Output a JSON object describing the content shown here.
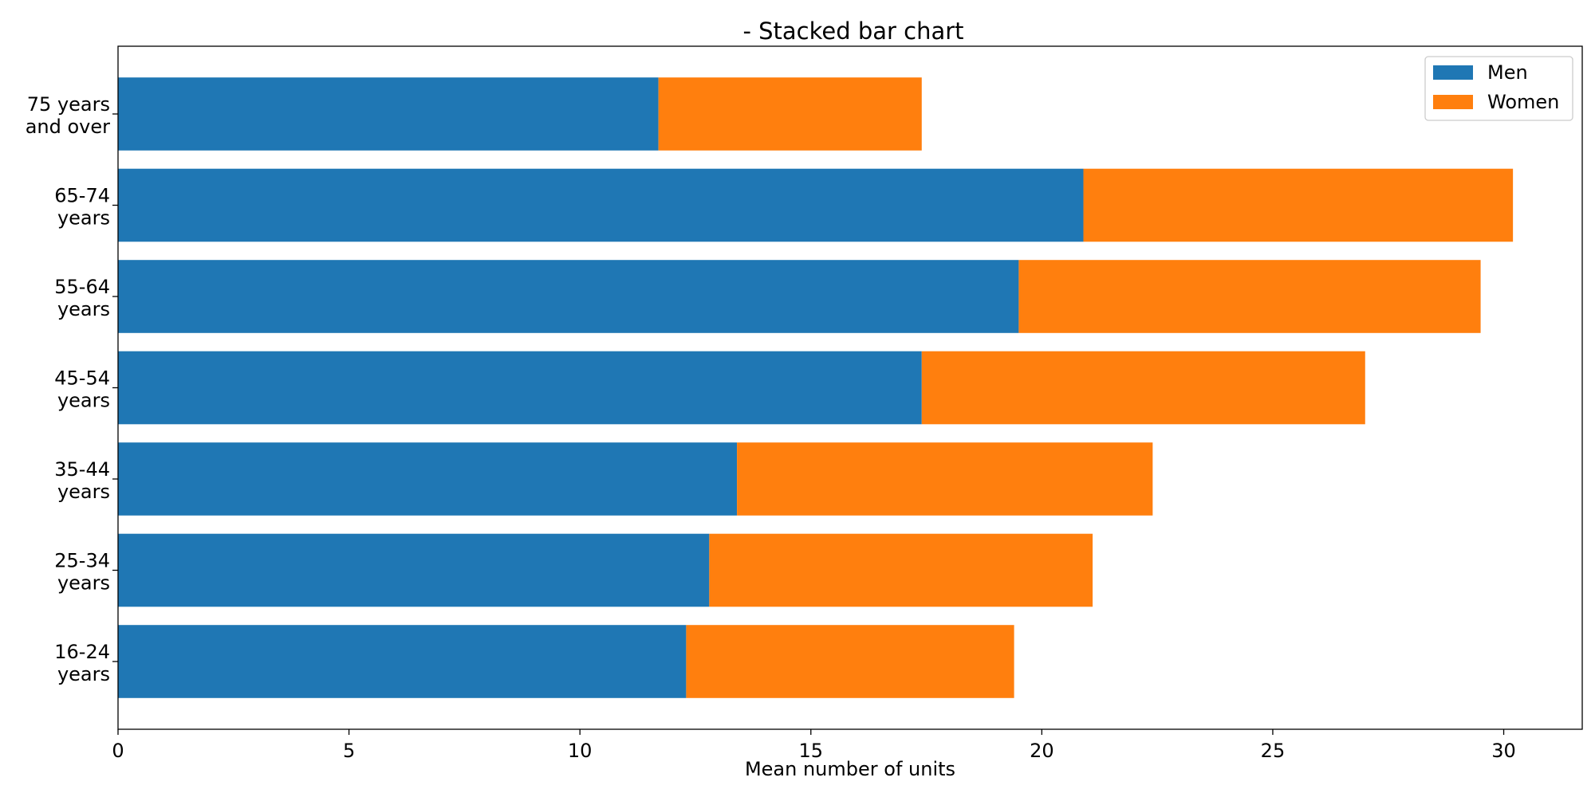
{
  "chart_data": {
    "type": "bar",
    "orientation": "horizontal",
    "stacked": true,
    "title": "- Stacked bar chart",
    "xlabel": "Mean number of units",
    "ylabel": "",
    "xlim": [
      0,
      31.7
    ],
    "xticks": [
      0,
      5,
      10,
      15,
      20,
      25,
      30
    ],
    "categories": [
      [
        "16-24",
        "years"
      ],
      [
        "25-34",
        "years"
      ],
      [
        "35-44",
        "years"
      ],
      [
        "45-54",
        "years"
      ],
      [
        "55-64",
        "years"
      ],
      [
        "65-74",
        "years"
      ],
      [
        "75 years",
        "and over"
      ]
    ],
    "series": [
      {
        "name": "Men",
        "color": "#1f77b4",
        "values": [
          12.3,
          12.8,
          13.4,
          17.4,
          19.5,
          20.9,
          11.7
        ]
      },
      {
        "name": "Women",
        "color": "#ff7f0e",
        "values": [
          7.1,
          8.3,
          9.0,
          9.6,
          10.0,
          9.3,
          5.7
        ]
      }
    ],
    "grid": false,
    "legend": {
      "placement": "top-right"
    }
  }
}
